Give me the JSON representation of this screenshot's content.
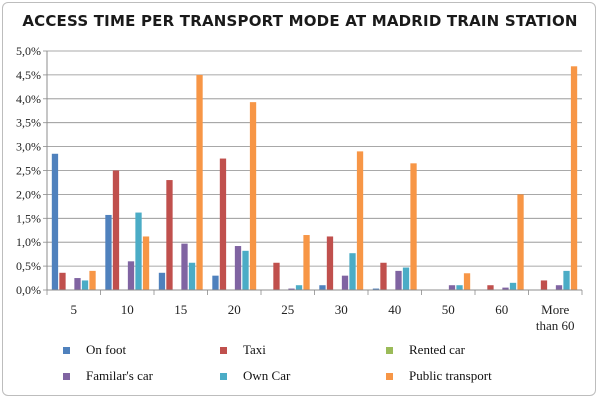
{
  "chart_data": {
    "type": "bar",
    "title": "ACCESS TIME PER TRANSPORT MODE AT MADRID TRAIN STATION",
    "categories": [
      "5",
      "10",
      "15",
      "20",
      "25",
      "30",
      "40",
      "50",
      "60",
      "More than 60"
    ],
    "category_lines": [
      [
        "5"
      ],
      [
        "10"
      ],
      [
        "15"
      ],
      [
        "20"
      ],
      [
        "25"
      ],
      [
        "30"
      ],
      [
        "40"
      ],
      [
        "50"
      ],
      [
        "60"
      ],
      [
        "More",
        "than 60"
      ]
    ],
    "ylim": [
      0,
      5.0
    ],
    "y_unit": "%",
    "yticks": [
      "0,0%",
      "0,5%",
      "1,0%",
      "1,5%",
      "2,0%",
      "2,5%",
      "3,0%",
      "3,5%",
      "4,0%",
      "4,5%",
      "5,0%"
    ],
    "grid": true,
    "legend_position": "bottom",
    "series": [
      {
        "name": "On foot",
        "color": "#4f81bd",
        "values": [
          2.85,
          1.57,
          0.36,
          0.3,
          0.0,
          0.1,
          0.03,
          0.0,
          0.0,
          0.0
        ]
      },
      {
        "name": "Taxi",
        "color": "#c0504d",
        "values": [
          0.36,
          2.5,
          2.3,
          2.75,
          0.57,
          1.12,
          0.57,
          0.0,
          0.1,
          0.2
        ]
      },
      {
        "name": "Rented car",
        "color": "#9bbb59",
        "values": [
          0.0,
          0.0,
          0.0,
          0.0,
          0.0,
          0.0,
          0.0,
          0.0,
          0.0,
          0.0
        ]
      },
      {
        "name": "Familar's car",
        "color": "#8064a2",
        "values": [
          0.25,
          0.6,
          0.97,
          0.92,
          0.03,
          0.3,
          0.4,
          0.1,
          0.05,
          0.1
        ]
      },
      {
        "name": "Own Car",
        "color": "#4bacc6",
        "values": [
          0.2,
          1.62,
          0.57,
          0.82,
          0.1,
          0.77,
          0.47,
          0.1,
          0.15,
          0.4
        ]
      },
      {
        "name": "Public transport",
        "color": "#f79646",
        "values": [
          0.4,
          1.12,
          4.5,
          3.93,
          1.15,
          2.9,
          2.65,
          0.35,
          2.0,
          4.68
        ]
      }
    ]
  }
}
